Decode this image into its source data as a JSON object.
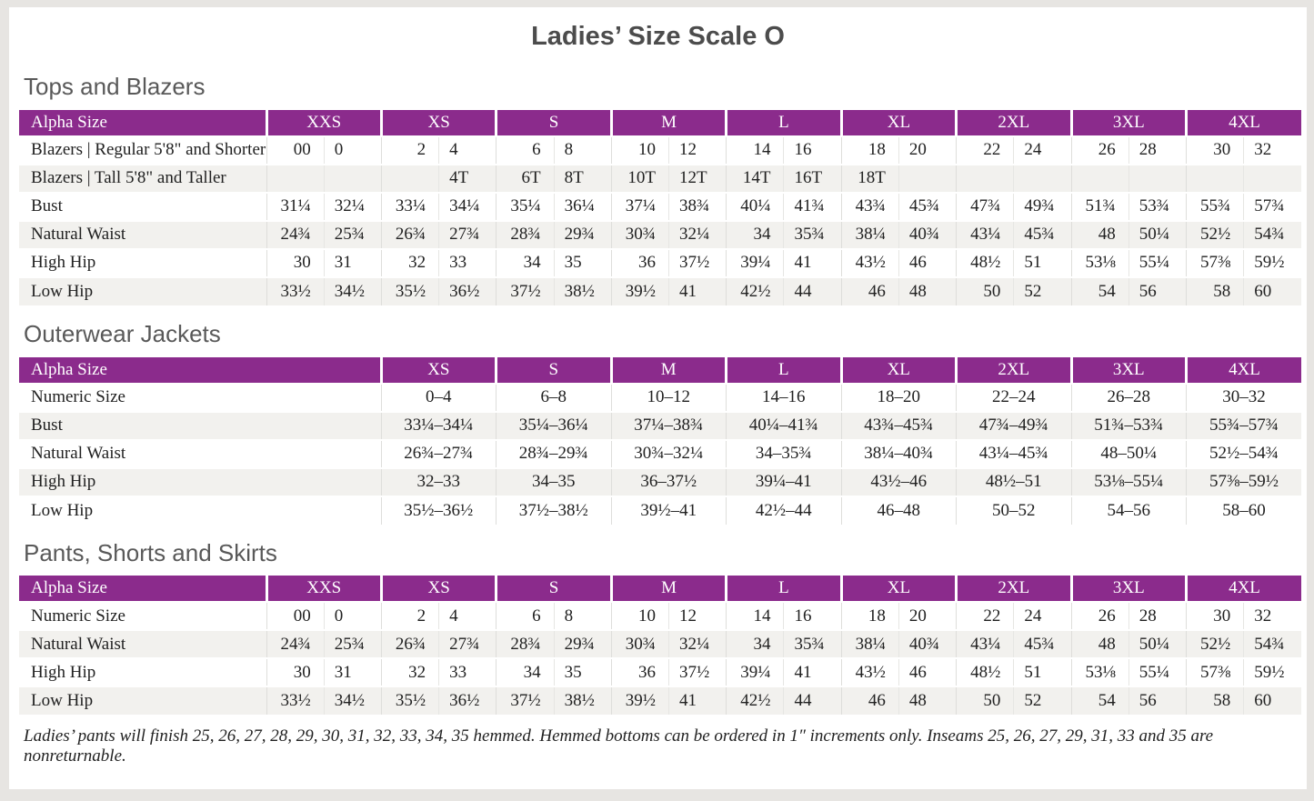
{
  "page": {
    "title": "Ladies’ Size Scale O",
    "footnote": "Ladies’ pants will finish 25, 26, 27, 28, 29, 30, 31, 32, 33, 34, 35 hemmed. Hemmed bottoms can be ordered in 1″ increments only. Inseams 25, 26, 27, 29, 31, 33 and 35 are nonreturnable."
  },
  "colors": {
    "header_bg": "#8B2B8C",
    "row_alt": "#F2F1EE",
    "grid_line": "#DEDEDB",
    "heading_text": "#595959",
    "title_text": "#4C4C4C",
    "body_text": "#212121",
    "page_border": "#E7E5E2"
  },
  "tables": [
    {
      "title": "Tops and Blazers",
      "header_label": "Alpha Size",
      "columns_per_size": 2,
      "sizes": [
        "XXS",
        "XS",
        "S",
        "M",
        "L",
        "XL",
        "2XL",
        "3XL",
        "4XL"
      ],
      "rows": [
        {
          "label": "Blazers | Regular 5'8\" and Shorter",
          "values": [
            "00",
            "0",
            "2",
            "4",
            "6",
            "8",
            "10",
            "12",
            "14",
            "16",
            "18",
            "20",
            "22",
            "24",
            "26",
            "28",
            "30",
            "32"
          ]
        },
        {
          "label": "Blazers | Tall 5'8\" and Taller",
          "values": [
            "",
            "",
            "",
            "4T",
            "6T",
            "8T",
            "10T",
            "12T",
            "14T",
            "16T",
            "18T",
            "",
            "",
            "",
            "",
            "",
            "",
            ""
          ]
        },
        {
          "label": "Bust",
          "values": [
            "31¼",
            "32¼",
            "33¼",
            "34¼",
            "35¼",
            "36¼",
            "37¼",
            "38¾",
            "40¼",
            "41¾",
            "43¾",
            "45¾",
            "47¾",
            "49¾",
            "51¾",
            "53¾",
            "55¾",
            "57¾"
          ]
        },
        {
          "label": "Natural Waist",
          "values": [
            "24¾",
            "25¾",
            "26¾",
            "27¾",
            "28¾",
            "29¾",
            "30¾",
            "32¼",
            "34",
            "35¾",
            "38¼",
            "40¾",
            "43¼",
            "45¾",
            "48",
            "50¼",
            "52½",
            "54¾"
          ]
        },
        {
          "label": "High Hip",
          "values": [
            "30",
            "31",
            "32",
            "33",
            "34",
            "35",
            "36",
            "37½",
            "39¼",
            "41",
            "43½",
            "46",
            "48½",
            "51",
            "53⅛",
            "55¼",
            "57⅜",
            "59½"
          ]
        },
        {
          "label": "Low Hip",
          "values": [
            "33½",
            "34½",
            "35½",
            "36½",
            "37½",
            "38½",
            "39½",
            "41",
            "42½",
            "44",
            "46",
            "48",
            "50",
            "52",
            "54",
            "56",
            "58",
            "60"
          ]
        }
      ]
    },
    {
      "title": "Outerwear Jackets",
      "header_label": "Alpha Size",
      "columns_per_size": 1,
      "sizes": [
        "XS",
        "S",
        "M",
        "L",
        "XL",
        "2XL",
        "3XL",
        "4XL"
      ],
      "rows": [
        {
          "label": "Numeric Size",
          "values": [
            "0–4",
            "6–8",
            "10–12",
            "14–16",
            "18–20",
            "22–24",
            "26–28",
            "30–32"
          ]
        },
        {
          "label": "Bust",
          "values": [
            "33¼–34¼",
            "35¼–36¼",
            "37¼–38¾",
            "40¼–41¾",
            "43¾–45¾",
            "47¾–49¾",
            "51¾–53¾",
            "55¾–57¾"
          ]
        },
        {
          "label": "Natural Waist",
          "values": [
            "26¾–27¾",
            "28¾–29¾",
            "30¾–32¼",
            "34–35¾",
            "38¼–40¾",
            "43¼–45¾",
            "48–50¼",
            "52½–54¾"
          ]
        },
        {
          "label": "High Hip",
          "values": [
            "32–33",
            "34–35",
            "36–37½",
            "39¼–41",
            "43½–46",
            "48½–51",
            "53⅛–55¼",
            "57⅜–59½"
          ]
        },
        {
          "label": "Low Hip",
          "values": [
            "35½–36½",
            "37½–38½",
            "39½–41",
            "42½–44",
            "46–48",
            "50–52",
            "54–56",
            "58–60"
          ]
        }
      ]
    },
    {
      "title": "Pants, Shorts and Skirts",
      "header_label": "Alpha Size",
      "columns_per_size": 2,
      "sizes": [
        "XXS",
        "XS",
        "S",
        "M",
        "L",
        "XL",
        "2XL",
        "3XL",
        "4XL"
      ],
      "rows": [
        {
          "label": "Numeric Size",
          "values": [
            "00",
            "0",
            "2",
            "4",
            "6",
            "8",
            "10",
            "12",
            "14",
            "16",
            "18",
            "20",
            "22",
            "24",
            "26",
            "28",
            "30",
            "32"
          ]
        },
        {
          "label": "Natural Waist",
          "values": [
            "24¾",
            "25¾",
            "26¾",
            "27¾",
            "28¾",
            "29¾",
            "30¾",
            "32¼",
            "34",
            "35¾",
            "38¼",
            "40¾",
            "43¼",
            "45¾",
            "48",
            "50¼",
            "52½",
            "54¾"
          ]
        },
        {
          "label": "High Hip",
          "values": [
            "30",
            "31",
            "32",
            "33",
            "34",
            "35",
            "36",
            "37½",
            "39¼",
            "41",
            "43½",
            "46",
            "48½",
            "51",
            "53⅛",
            "55¼",
            "57⅜",
            "59½"
          ]
        },
        {
          "label": "Low Hip",
          "values": [
            "33½",
            "34½",
            "35½",
            "36½",
            "37½",
            "38½",
            "39½",
            "41",
            "42½",
            "44",
            "46",
            "48",
            "50",
            "52",
            "54",
            "56",
            "58",
            "60"
          ]
        }
      ]
    }
  ]
}
